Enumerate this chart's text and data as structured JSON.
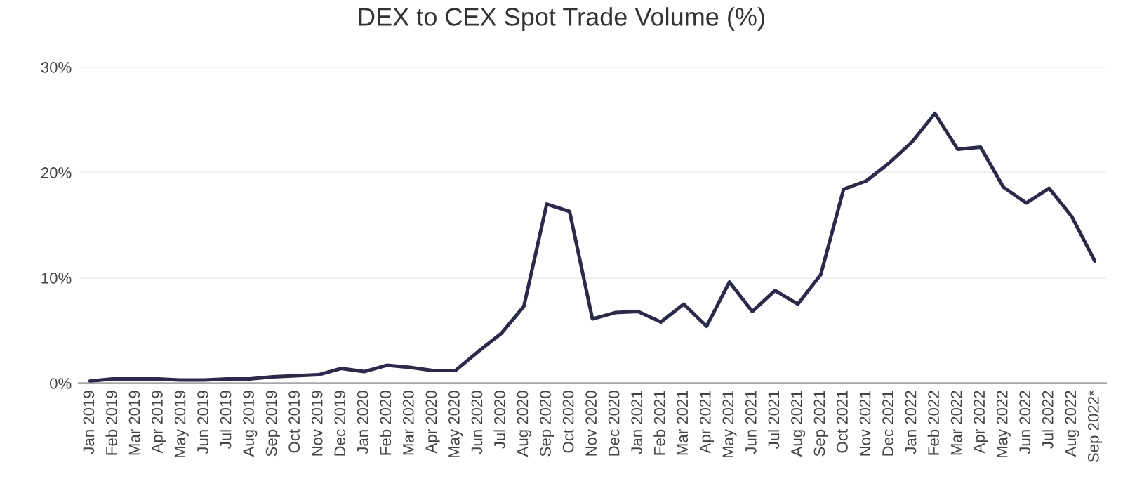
{
  "chart_data": {
    "type": "line",
    "title": "DEX to CEX Spot Trade Volume (%)",
    "categories": [
      "Jan 2019",
      "Feb 2019",
      "Mar 2019",
      "Apr 2019",
      "May 2019",
      "Jun 2019",
      "Jul 2019",
      "Aug 2019",
      "Sep 2019",
      "Oct 2019",
      "Nov 2019",
      "Dec 2019",
      "Jan 2020",
      "Feb 2020",
      "Mar 2020",
      "Apr 2020",
      "May 2020",
      "Jun 2020",
      "Jul 2020",
      "Aug 2020",
      "Sep 2020",
      "Oct 2020",
      "Nov 2020",
      "Dec 2020",
      "Jan 2021",
      "Feb 2021",
      "Mar 2021",
      "Apr 2021",
      "May 2021",
      "Jun 2021",
      "Jul 2021",
      "Aug 2021",
      "Sep 2021",
      "Oct 2021",
      "Nov 2021",
      "Dec 2021",
      "Jan 2022",
      "Feb 2022",
      "Mar 2022",
      "Apr 2022",
      "May 2022",
      "Jun 2022",
      "Jul 2022",
      "Aug 2022",
      "Sep 2022*"
    ],
    "series": [
      {
        "color": "#2b2a4a",
        "values": [
          0.2,
          0.4,
          0.4,
          0.4,
          0.3,
          0.3,
          0.4,
          0.4,
          0.6,
          0.7,
          0.8,
          1.4,
          1.1,
          1.7,
          1.5,
          1.2,
          1.2,
          3.0,
          4.7,
          7.3,
          17.0,
          16.3,
          6.1,
          6.7,
          6.8,
          5.8,
          7.5,
          5.4,
          9.6,
          6.8,
          8.8,
          7.5,
          10.3,
          18.4,
          19.2,
          20.9,
          22.9,
          25.6,
          22.2,
          22.4,
          18.6,
          17.1,
          18.5,
          15.8,
          11.6
        ]
      }
    ],
    "ylim": [
      0,
      30
    ],
    "yticks": [
      {
        "value": 0,
        "label": "0%"
      },
      {
        "value": 10,
        "label": "10%"
      },
      {
        "value": 20,
        "label": "20%"
      },
      {
        "value": 30,
        "label": "30%"
      }
    ],
    "grid": "y",
    "legend": false,
    "marker": "none",
    "line_style": "solid"
  }
}
